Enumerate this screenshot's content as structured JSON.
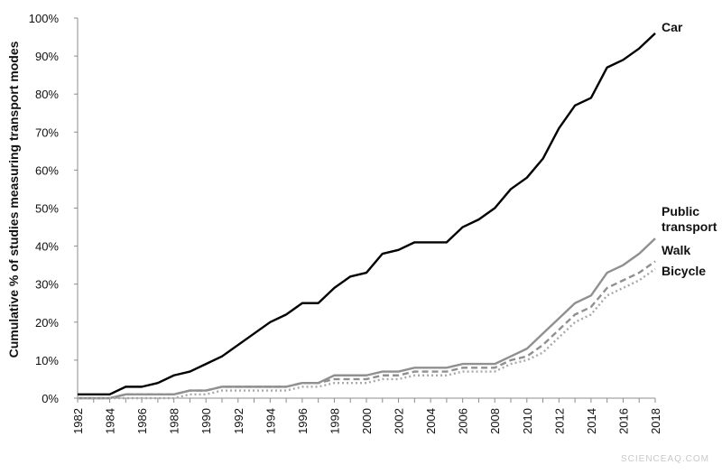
{
  "chart_data": {
    "type": "line",
    "title": "",
    "ylabel": "Cumulative % of studies measuring transport modes",
    "xlabel": "",
    "x": [
      1982,
      1983,
      1984,
      1985,
      1986,
      1987,
      1988,
      1989,
      1990,
      1991,
      1992,
      1993,
      1994,
      1995,
      1996,
      1997,
      1998,
      1999,
      2000,
      2001,
      2002,
      2003,
      2004,
      2005,
      2006,
      2007,
      2008,
      2009,
      2010,
      2011,
      2012,
      2013,
      2014,
      2015,
      2016,
      2017,
      2018
    ],
    "x_tick_labels": [
      "1982",
      "1984",
      "1986",
      "1988",
      "1990",
      "1992",
      "1994",
      "1996",
      "1998",
      "2000",
      "2002",
      "2004",
      "2006",
      "2008",
      "2010",
      "2012",
      "2014",
      "2016",
      "2018"
    ],
    "y_tick_labels": [
      "0%",
      "10%",
      "20%",
      "30%",
      "40%",
      "50%",
      "60%",
      "70%",
      "80%",
      "90%",
      "100%"
    ],
    "ylim": [
      0,
      100
    ],
    "grid": false,
    "series": [
      {
        "name": "Car",
        "color": "#000000",
        "dash": "solid",
        "values": [
          1,
          1,
          1,
          3,
          3,
          4,
          6,
          7,
          9,
          11,
          14,
          17,
          20,
          22,
          25,
          25,
          29,
          32,
          33,
          38,
          39,
          41,
          41,
          41,
          45,
          47,
          50,
          55,
          58,
          63,
          71,
          77,
          79,
          87,
          89,
          92,
          96
        ]
      },
      {
        "name": "Public transport",
        "color": "#909090",
        "dash": "solid",
        "values": [
          0,
          0,
          0,
          1,
          1,
          1,
          1,
          2,
          2,
          3,
          3,
          3,
          3,
          3,
          4,
          4,
          6,
          6,
          6,
          7,
          7,
          8,
          8,
          8,
          9,
          9,
          9,
          11,
          13,
          17,
          21,
          25,
          27,
          33,
          35,
          38,
          42
        ]
      },
      {
        "name": "Walk",
        "color": "#909090",
        "dash": "dashed",
        "values": [
          0,
          0,
          0,
          1,
          1,
          1,
          1,
          2,
          2,
          3,
          3,
          3,
          3,
          3,
          4,
          4,
          5,
          5,
          5,
          6,
          6,
          7,
          7,
          7,
          8,
          8,
          8,
          10,
          11,
          14,
          18,
          22,
          24,
          29,
          31,
          33,
          36
        ]
      },
      {
        "name": "Bicycle",
        "color": "#a8a8a8",
        "dash": "dotted",
        "values": [
          0,
          0,
          0,
          0,
          0,
          0,
          0,
          1,
          1,
          2,
          2,
          2,
          2,
          2,
          3,
          3,
          4,
          4,
          4,
          5,
          5,
          6,
          6,
          6,
          7,
          7,
          7,
          9,
          10,
          12,
          16,
          20,
          22,
          27,
          29,
          31,
          34
        ]
      }
    ],
    "series_labels": [
      {
        "lines": [
          "Car"
        ]
      },
      {
        "lines": [
          "Public",
          "transport"
        ]
      },
      {
        "lines": [
          "Walk"
        ]
      },
      {
        "lines": [
          "Bicycle"
        ]
      }
    ]
  },
  "watermark": "SCIENCEAQ.COM"
}
